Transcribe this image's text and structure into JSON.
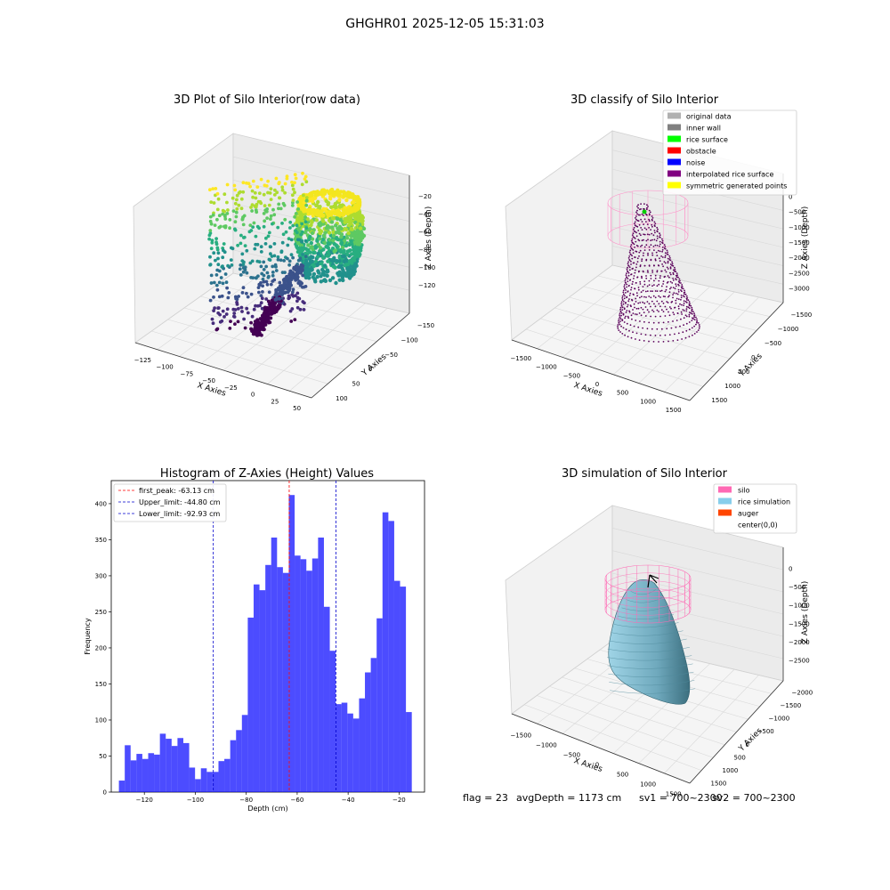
{
  "figure": {
    "suptitle": "GHGHR01 2025-12-05 15:31:03",
    "footer": {
      "flag": "flag = 23",
      "avg_depth": "avgDepth = 1173 cm",
      "sv1": "sv1 = 700~2300",
      "sv2": "sv2 = 700~2300"
    }
  },
  "chart_data": [
    {
      "type": "scatter",
      "title": "3D Plot of Silo Interior(row data)",
      "xlabel": "X Axies",
      "ylabel": "Y Axies",
      "zlabel": "Z Axies (Depth)",
      "x_ticks": [
        "−125",
        "−100",
        "−75",
        "−50",
        "−25",
        "0",
        "25",
        "50"
      ],
      "y_ticks": [
        "−150",
        "−100",
        "−50",
        "0",
        "50",
        "100"
      ],
      "z_ticks": [
        "−120",
        "−100",
        "−80",
        "−60",
        "−40",
        "−20"
      ],
      "colormap": "viridis",
      "xlim": [
        -130,
        60
      ],
      "ylim": [
        -160,
        110
      ],
      "zlim": [
        -130,
        -15
      ]
    },
    {
      "type": "scatter",
      "title": "3D classify of Silo Interior",
      "xlabel": "X Axies",
      "ylabel": "Y Axies",
      "zlabel": "Z Axies (Depth)",
      "x_ticks": [
        "−1500",
        "−1000",
        "−500",
        "0",
        "500",
        "1000",
        "1500"
      ],
      "y_ticks": [
        "−1500",
        "−1000",
        "−500",
        "0",
        "500",
        "1000",
        "1500"
      ],
      "z_ticks": [
        "−3000",
        "−2500",
        "−2000",
        "−1500",
        "−1000",
        "−500",
        "0"
      ],
      "legend": [
        {
          "label": "original data",
          "color": "#b0b0b0"
        },
        {
          "label": "inner wall",
          "color": "#808080"
        },
        {
          "label": "rice surface",
          "color": "#00ff00"
        },
        {
          "label": "obstacle",
          "color": "#ff0000"
        },
        {
          "label": "noise",
          "color": "#0000ff"
        },
        {
          "label": "interpolated rice surface",
          "color": "#800080"
        },
        {
          "label": "symmetric generated points",
          "color": "#ffff00"
        }
      ],
      "legend_position": "upper right"
    },
    {
      "type": "bar",
      "title": "Histogram of Z-Axies (Height) Values",
      "xlabel": "Depth (cm)",
      "ylabel": "Frequency",
      "bar_color": "#0000ff",
      "bin_start": -130,
      "bin_width": 2.3,
      "values": [
        16,
        65,
        44,
        53,
        46,
        54,
        52,
        81,
        74,
        64,
        75,
        68,
        34,
        18,
        33,
        28,
        28,
        43,
        46,
        72,
        86,
        107,
        242,
        288,
        280,
        315,
        353,
        312,
        304,
        412,
        328,
        323,
        307,
        324,
        353,
        257,
        196,
        122,
        124,
        109,
        102,
        130,
        166,
        186,
        241,
        388,
        376,
        293,
        285,
        111
      ],
      "xlim": [
        -133,
        -10
      ],
      "ylim": [
        0,
        432
      ],
      "x_ticks": [
        -120,
        -100,
        -80,
        -60,
        -40,
        -20
      ],
      "y_ticks": [
        0,
        50,
        100,
        150,
        200,
        250,
        300,
        350,
        400
      ],
      "vlines": [
        {
          "label": "first_peak: -63.13 cm",
          "x": -63.13,
          "color": "#ff0000"
        },
        {
          "label": "Upper_limit: -44.80 cm",
          "x": -44.8,
          "color": "#0000cc"
        },
        {
          "label": "Lower_limit: -92.93 cm",
          "x": -92.93,
          "color": "#0000cc"
        }
      ],
      "legend_position": "upper left"
    },
    {
      "type": "scatter",
      "title": "3D simulation of Silo Interior",
      "xlabel": "X Axies",
      "ylabel": "Y Axies",
      "zlabel": "Z Axies (Depth)",
      "x_ticks": [
        "−1500",
        "−1000",
        "−500",
        "0",
        "500",
        "1000",
        "1500"
      ],
      "y_ticks": [
        "−2000",
        "−1500",
        "−1000",
        "−500",
        "0",
        "500",
        "1000",
        "1500"
      ],
      "z_ticks": [
        "−2500",
        "−2000",
        "−1500",
        "−1000",
        "−500",
        "0"
      ],
      "legend": [
        {
          "label": "silo",
          "color": "#ff69b4"
        },
        {
          "label": "rice simulation",
          "color": "#87ceeb"
        },
        {
          "label": "auger",
          "color": "#ff4500"
        },
        {
          "label": "center(0,0)",
          "color": "none"
        }
      ],
      "legend_position": "upper right"
    }
  ]
}
